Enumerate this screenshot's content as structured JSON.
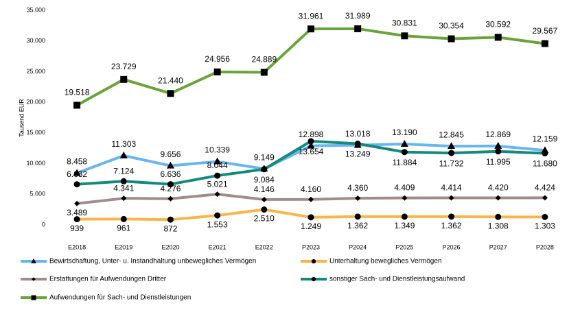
{
  "chart_data": {
    "type": "line",
    "y_label": "Tausend EUR",
    "categories": [
      "E2018",
      "E2019",
      "E2020",
      "E2021",
      "E2022",
      "P2023",
      "P2024",
      "P2025",
      "P2026",
      "P2027",
      "P2028"
    ],
    "ylim": [
      0,
      35000
    ],
    "yticks": [
      0,
      {
        "value": 5000,
        "label": "5.000"
      },
      {
        "value": 10000,
        "label": "10.000"
      },
      {
        "value": 15000,
        "label": "15.000"
      },
      {
        "value": 20000,
        "label": "20.000"
      },
      {
        "value": 25000,
        "label": "25.000"
      },
      {
        "value": 30000,
        "label": "30.000"
      },
      {
        "value": 35000,
        "label": "35.000"
      }
    ],
    "grid": false,
    "legend": "bottom",
    "series": [
      {
        "name": "Bewirtschaftung, Unter- u. Instandhaltung unbewegliches Vermögen",
        "color": "#6ab4f0",
        "marker": "triangle",
        "values": [
          8458,
          11303,
          9656,
          10339,
          9149,
          12898,
          13018,
          13190,
          12845,
          12869,
          12159
        ],
        "value_labels": [
          "8.458",
          "11.303",
          "9.656",
          "10.339",
          "9.149",
          "12.898",
          "13.018",
          "13.190",
          "12.845",
          "12.869",
          "12.159"
        ]
      },
      {
        "name": "Unterhaltung bewegliches Vermögen",
        "color": "#f9b54a",
        "marker": "circle",
        "values": [
          939,
          961,
          872,
          1553,
          2510,
          1249,
          1362,
          1349,
          1362,
          1308,
          1303
        ],
        "value_labels": [
          "939",
          "961",
          "872",
          "1.553",
          "2.510",
          "1.249",
          "1.362",
          "1.349",
          "1.362",
          "1.308",
          "1.303"
        ]
      },
      {
        "name": "Erstattungen für Aufwendungen Dritter",
        "color": "#a08c88",
        "marker": "diamond",
        "values": [
          3489,
          4341,
          4276,
          5021,
          4146,
          4160,
          4360,
          4409,
          4414,
          4420,
          4424
        ],
        "value_labels": [
          "3.489",
          "4.341",
          "4.276",
          "5.021",
          "4.146",
          "4.160",
          "4.360",
          "4.409",
          "4.414",
          "4.420",
          "4.424"
        ]
      },
      {
        "name": "sonstiger Sach- und Dienstleistungsaufwand",
        "color": "#148a7a",
        "marker": "circle",
        "values": [
          6632,
          7124,
          6636,
          8044,
          9084,
          13654,
          13249,
          11884,
          11732,
          11995,
          11680
        ],
        "value_labels": [
          "6.632",
          "7.124",
          "6.636",
          "8.044",
          "9.084",
          "13.654",
          "13.249",
          "11.884",
          "11.732",
          "11.995",
          "11.680"
        ]
      },
      {
        "name": "Aufwendungen für Sach- und Dienstleistungen",
        "color": "#6aa33a",
        "marker": "square",
        "values": [
          19518,
          23729,
          21440,
          24956,
          24889,
          31961,
          31989,
          30831,
          30354,
          30592,
          29567
        ],
        "value_labels": [
          "19.518",
          "23.729",
          "21.440",
          "24.956",
          "24.889",
          "31.961",
          "31.989",
          "30.831",
          "30.354",
          "30.592",
          "29.567"
        ]
      }
    ]
  }
}
